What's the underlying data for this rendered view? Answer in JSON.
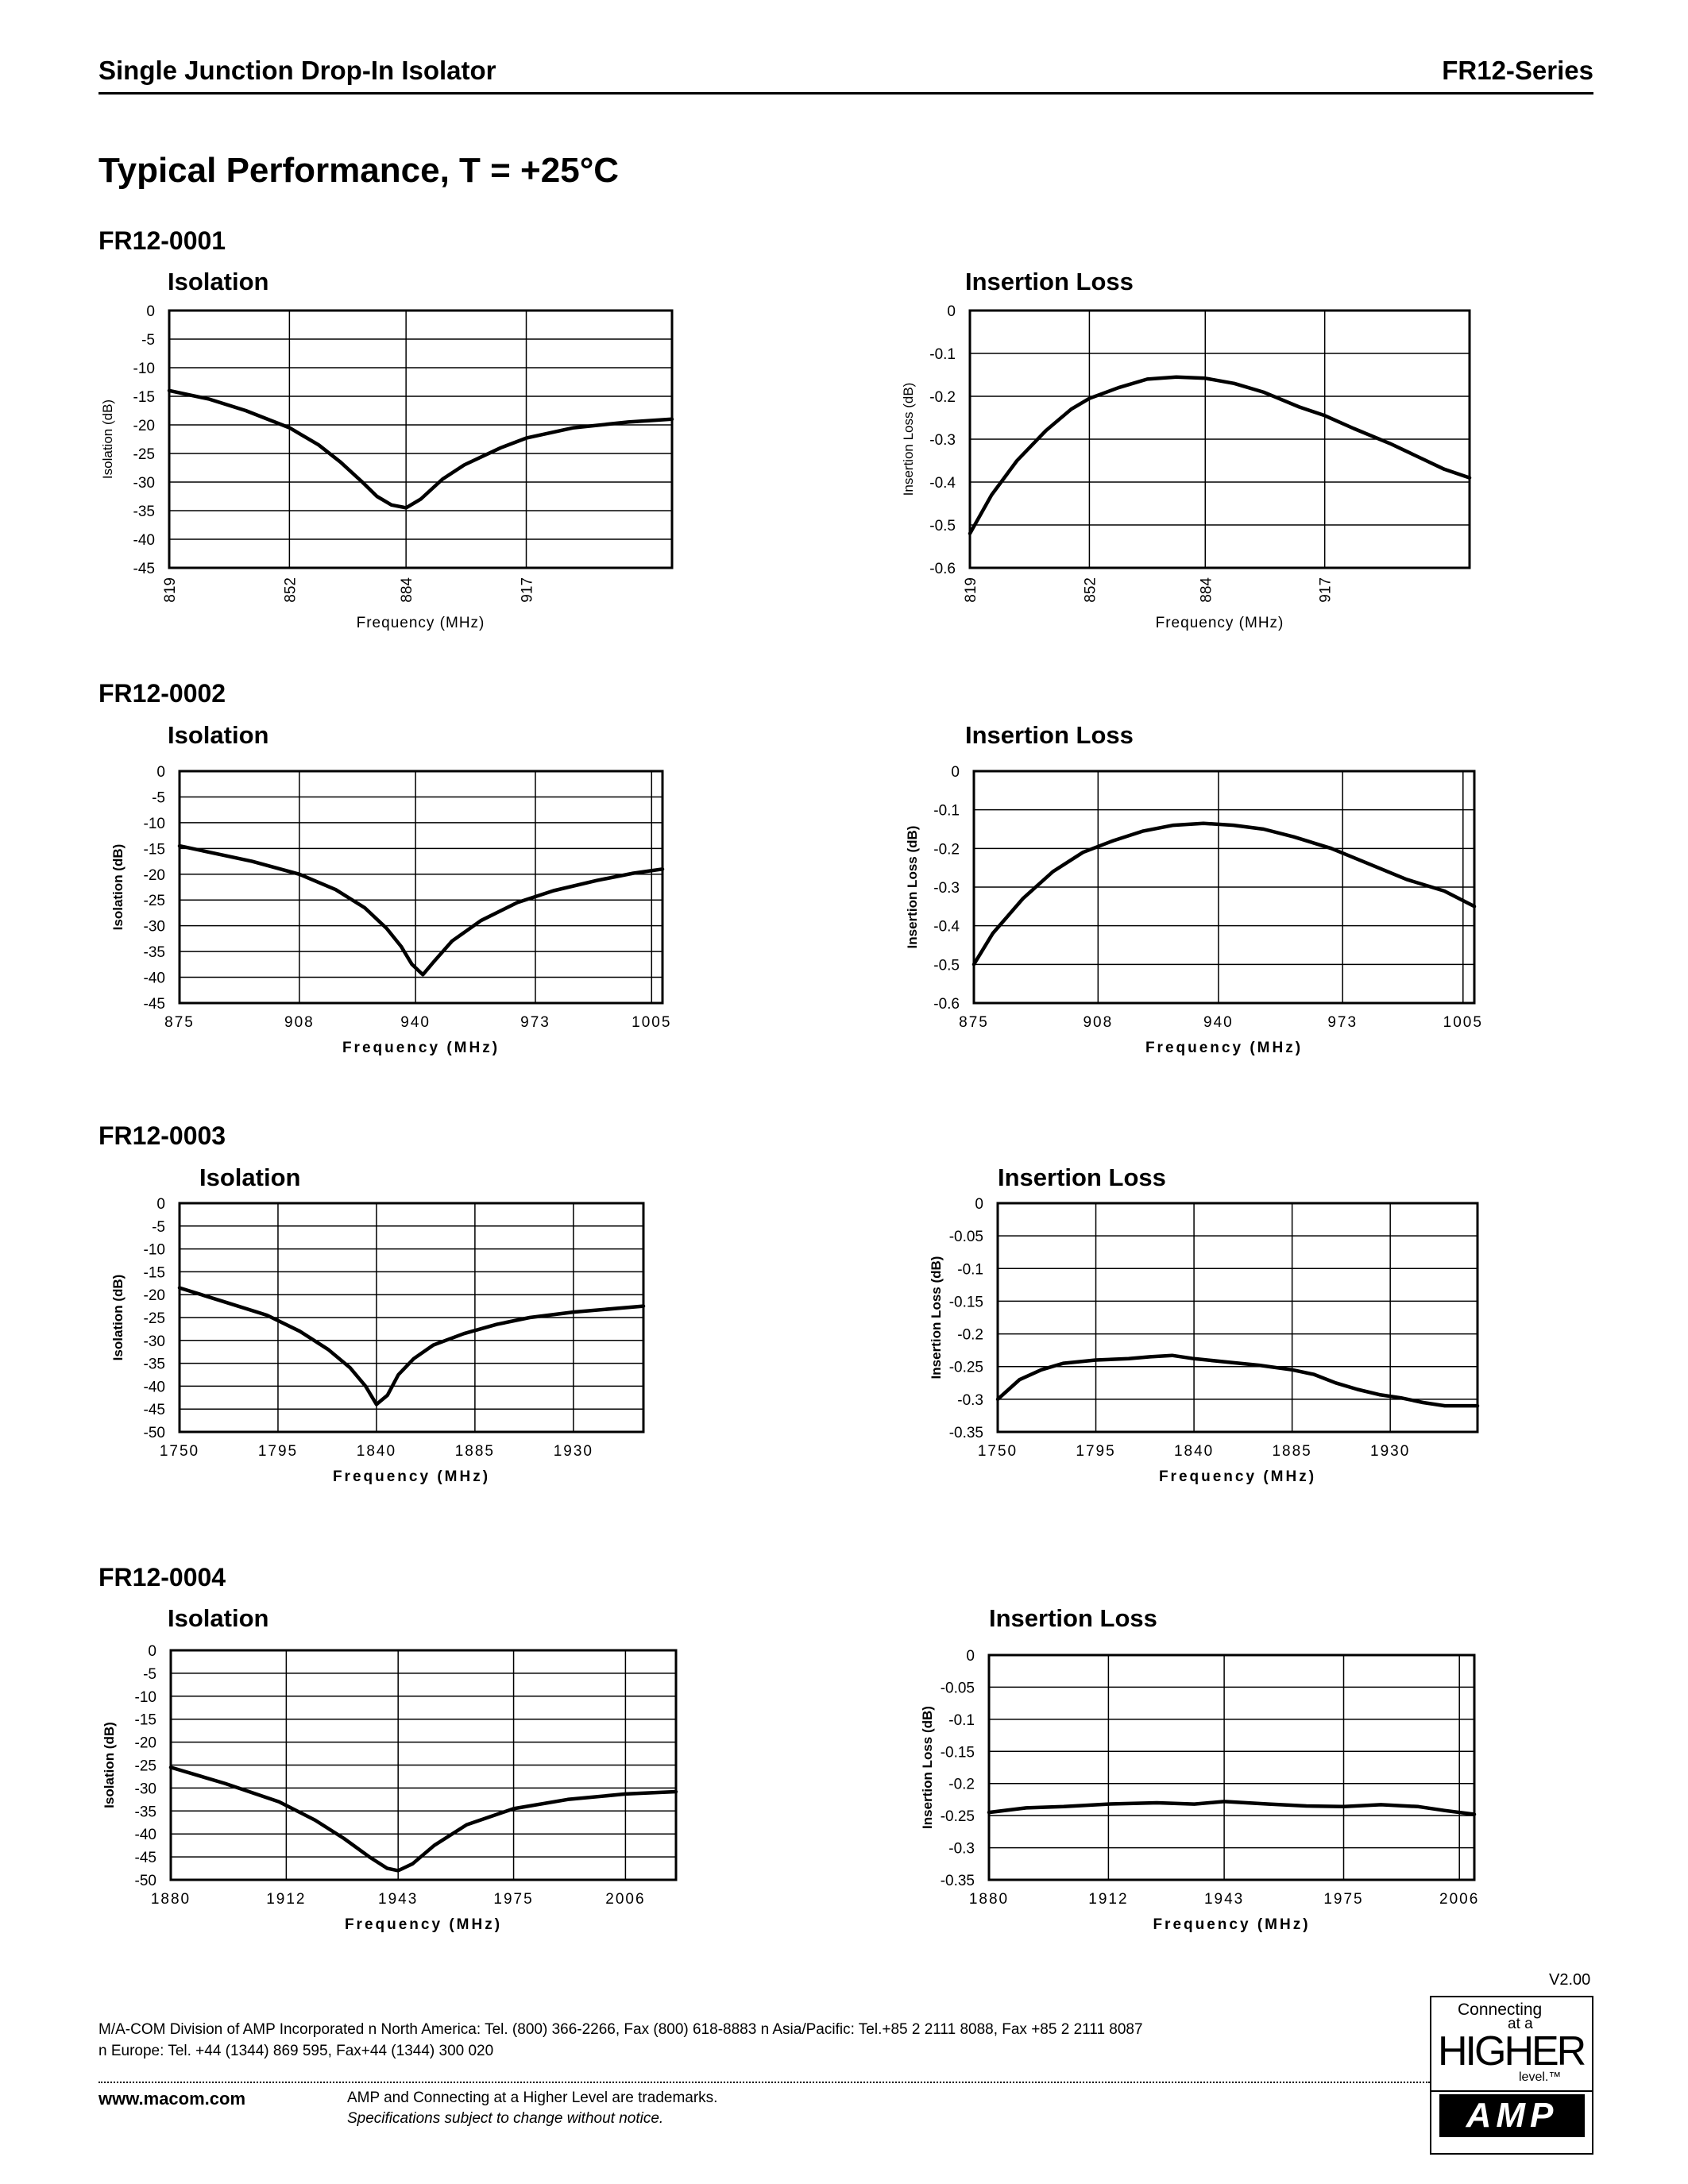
{
  "header": {
    "left": "Single Junction Drop-In Isolator",
    "right": "FR12-Series"
  },
  "page_title": "Typical Performance, T = +25°C",
  "sections": [
    "FR12-0001",
    "FR12-0002",
    "FR12-0003",
    "FR12-0004"
  ],
  "chart_data": [
    {
      "id": "c1",
      "type": "line",
      "title": "Isolation",
      "xlabel": "Frequency  (MHz)",
      "ylabel": "Isolation (dB)",
      "ylim": [
        -45,
        0
      ],
      "yticks": [
        "0",
        "-5",
        "-10",
        "-15",
        "-20",
        "-25",
        "-30",
        "-35",
        "-40",
        "-45"
      ],
      "xlim": [
        819,
        957
      ],
      "xticks": [
        "819",
        "852",
        "884",
        "917"
      ],
      "rotated_xticks": true,
      "grid": true,
      "series": [
        {
          "x": [
            819,
            830,
            840,
            852,
            860,
            866,
            872,
            876,
            880,
            884,
            888,
            894,
            900,
            910,
            917,
            930,
            945,
            957
          ],
          "y": [
            -14,
            -15.5,
            -17.5,
            -20.5,
            -23.5,
            -26.5,
            -30,
            -32.5,
            -34,
            -34.5,
            -33,
            -29.5,
            -27,
            -24,
            -22.3,
            -20.5,
            -19.5,
            -19
          ]
        }
      ]
    },
    {
      "id": "c2",
      "type": "line",
      "title": "Insertion Loss",
      "xlabel": "Frequency  (MHz)",
      "ylabel": "Insertion Loss (dB)",
      "ylim": [
        -0.6,
        0
      ],
      "yticks": [
        "0",
        "-0.1",
        "-0.2",
        "-0.3",
        "-0.4",
        "-0.5",
        "-0.6"
      ],
      "xlim": [
        819,
        957
      ],
      "xticks": [
        "819",
        "852",
        "884",
        "917"
      ],
      "rotated_xticks": true,
      "grid": true,
      "series": [
        {
          "x": [
            819,
            825,
            832,
            840,
            847,
            852,
            860,
            868,
            876,
            884,
            892,
            900,
            910,
            917,
            925,
            935,
            945,
            950,
            957
          ],
          "y": [
            -0.52,
            -0.43,
            -0.35,
            -0.28,
            -0.23,
            -0.205,
            -0.18,
            -0.16,
            -0.155,
            -0.158,
            -0.17,
            -0.19,
            -0.225,
            -0.245,
            -0.275,
            -0.31,
            -0.35,
            -0.37,
            -0.39
          ]
        }
      ]
    },
    {
      "id": "c3",
      "type": "line",
      "title": "Isolation",
      "xlabel": "Frequency (MHz)",
      "ylabel": "Isolation (dB)",
      "ylim": [
        -45,
        0
      ],
      "yticks": [
        "0",
        "-5",
        "-10",
        "-15",
        "-20",
        "-25",
        "-30",
        "-35",
        "-40",
        "-45"
      ],
      "xlim": [
        875,
        1008
      ],
      "xticks": [
        "875",
        "908",
        "940",
        "973",
        "1005"
      ],
      "grid": true,
      "series": [
        {
          "x": [
            875,
            885,
            895,
            908,
            918,
            926,
            932,
            936,
            939,
            942,
            945,
            950,
            958,
            968,
            978,
            990,
            1000,
            1008
          ],
          "y": [
            -14.5,
            -16,
            -17.5,
            -20,
            -23,
            -26.5,
            -30.5,
            -34,
            -37.5,
            -39.5,
            -37,
            -33,
            -29,
            -25.5,
            -23.2,
            -21.2,
            -19.8,
            -19
          ]
        }
      ]
    },
    {
      "id": "c4",
      "type": "line",
      "title": "Insertion Loss",
      "xlabel": "Frequency (MHz)",
      "ylabel": "Insertion Loss (dB)",
      "ylim": [
        -0.6,
        0
      ],
      "yticks": [
        "0",
        "-0.1",
        "-0.2",
        "-0.3",
        "-0.4",
        "-0.5",
        "-0.6"
      ],
      "xlim": [
        875,
        1008
      ],
      "xticks": [
        "875",
        "908",
        "940",
        "973",
        "1005"
      ],
      "grid": true,
      "series": [
        {
          "x": [
            875,
            880,
            888,
            896,
            904,
            912,
            920,
            928,
            936,
            944,
            952,
            960,
            970,
            980,
            990,
            1000,
            1008
          ],
          "y": [
            -0.5,
            -0.42,
            -0.33,
            -0.26,
            -0.21,
            -0.18,
            -0.155,
            -0.14,
            -0.135,
            -0.14,
            -0.15,
            -0.17,
            -0.2,
            -0.24,
            -0.28,
            -0.31,
            -0.35
          ]
        }
      ]
    },
    {
      "id": "c5",
      "type": "line",
      "title": "Isolation",
      "xlabel": "Frequency (MHz)",
      "ylabel": "Isolation (dB)",
      "ylim": [
        -50,
        0
      ],
      "yticks": [
        "0",
        "-5",
        "-10",
        "-15",
        "-20",
        "-25",
        "-30",
        "-35",
        "-40",
        "-45",
        "-50"
      ],
      "xlim": [
        1750,
        1962
      ],
      "xticks": [
        "1750",
        "1795",
        "1840",
        "1885",
        "1930"
      ],
      "grid": true,
      "series": [
        {
          "x": [
            1750,
            1770,
            1790,
            1805,
            1818,
            1828,
            1835,
            1840,
            1845,
            1850,
            1857,
            1866,
            1880,
            1895,
            1910,
            1930,
            1962
          ],
          "y": [
            -18.5,
            -21.5,
            -24.5,
            -28,
            -32,
            -36,
            -40,
            -44,
            -42,
            -37.5,
            -34,
            -31,
            -28.5,
            -26.5,
            -25,
            -23.8,
            -22.5
          ]
        }
      ]
    },
    {
      "id": "c6",
      "type": "line",
      "title": "Insertion Loss",
      "xlabel": "Frequency (MHz)",
      "ylabel": "Insertion Loss (dB)",
      "ylim": [
        -0.35,
        0
      ],
      "yticks": [
        "0",
        "-0.05",
        "-0.1",
        "-0.15",
        "-0.2",
        "-0.25",
        "-0.3",
        "-0.35"
      ],
      "xlim": [
        1750,
        1970
      ],
      "xticks": [
        "1750",
        "1795",
        "1840",
        "1885",
        "1930"
      ],
      "grid": true,
      "series": [
        {
          "x": [
            1750,
            1760,
            1770,
            1780,
            1795,
            1810,
            1820,
            1830,
            1840,
            1855,
            1870,
            1885,
            1895,
            1905,
            1915,
            1925,
            1935,
            1945,
            1955,
            1970
          ],
          "y": [
            -0.3,
            -0.27,
            -0.255,
            -0.245,
            -0.24,
            -0.238,
            -0.235,
            -0.233,
            -0.238,
            -0.243,
            -0.248,
            -0.255,
            -0.262,
            -0.275,
            -0.285,
            -0.293,
            -0.298,
            -0.305,
            -0.31,
            -0.31
          ]
        }
      ]
    },
    {
      "id": "c7",
      "type": "line",
      "title": "Isolation",
      "xlabel": "Frequency (MHz)",
      "ylabel": "Isolation (dB)",
      "ylim": [
        -50,
        0
      ],
      "yticks": [
        "0",
        "-5",
        "-10",
        "-15",
        "-20",
        "-25",
        "-30",
        "-35",
        "-40",
        "-45",
        "-50"
      ],
      "xlim": [
        1880,
        2020
      ],
      "xticks": [
        "1880",
        "1912",
        "1943",
        "1975",
        "2006"
      ],
      "grid": true,
      "series": [
        {
          "x": [
            1880,
            1895,
            1910,
            1920,
            1928,
            1935,
            1940,
            1943,
            1947,
            1953,
            1962,
            1975,
            1990,
            2006,
            2020
          ],
          "y": [
            -25.5,
            -29,
            -33,
            -37,
            -41,
            -45,
            -47.5,
            -48,
            -46.5,
            -42.5,
            -38,
            -34.5,
            -32.5,
            -31.3,
            -30.8
          ]
        }
      ]
    },
    {
      "id": "c8",
      "type": "line",
      "title": "Insertion Loss",
      "xlabel": "Frequency (MHz)",
      "ylabel": "Insertion Loss (dB)",
      "ylim": [
        -0.35,
        0
      ],
      "yticks": [
        "0",
        "-0.05",
        "-0.1",
        "-0.15",
        "-0.2",
        "-0.25",
        "-0.3",
        "-0.35"
      ],
      "xlim": [
        1880,
        2010
      ],
      "xticks": [
        "1880",
        "1912",
        "1943",
        "1975",
        "2006"
      ],
      "grid": true,
      "series": [
        {
          "x": [
            1880,
            1890,
            1900,
            1912,
            1925,
            1935,
            1943,
            1955,
            1965,
            1975,
            1985,
            1995,
            2002,
            2010
          ],
          "y": [
            -0.245,
            -0.238,
            -0.236,
            -0.232,
            -0.23,
            -0.232,
            -0.228,
            -0.232,
            -0.235,
            -0.236,
            -0.233,
            -0.236,
            -0.242,
            -0.248
          ]
        }
      ]
    }
  ],
  "version": "V2.00",
  "footer": {
    "contact_line1": "M/A-COM Division of AMP Incorporated  n  North America: Tel. (800) 366-2266, Fax (800) 618-8883  n  Asia/Pacific: Tel.+85 2 2111 8088, Fax +85 2 2111 8087",
    "contact_line2": "n  Europe: Tel. +44 (1344) 869 595, Fax+44 (1344) 300 020",
    "website": "www.macom.com",
    "trademark": "AMP and Connecting at a Higher Level are trademarks.",
    "spec_note": "Specifications subject to change without notice."
  },
  "logo": {
    "line1": "Connecting",
    "line2": "at a",
    "line3": "HIGHER",
    "line4": "level.™",
    "brand": "AMP"
  }
}
